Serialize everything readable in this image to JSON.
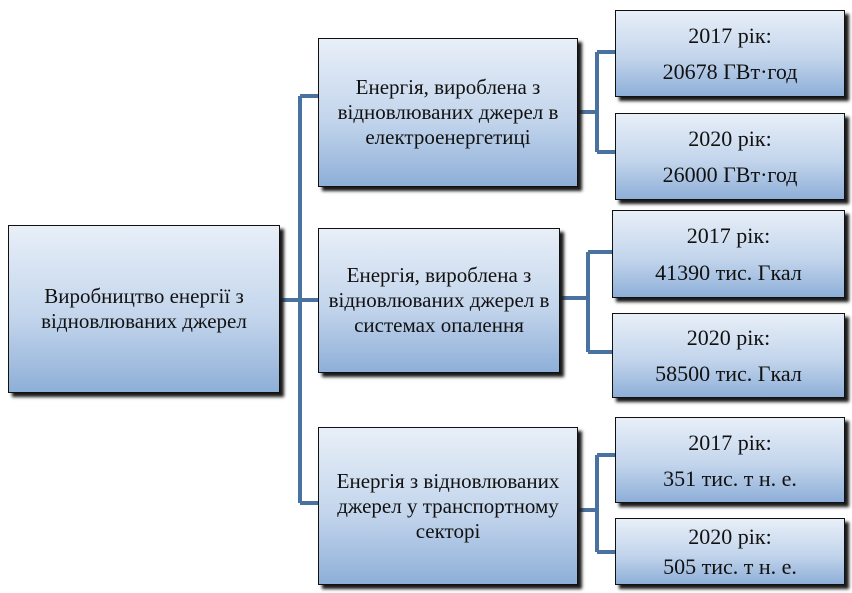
{
  "root": {
    "label": "Виробництво енергії з відновлюваних джерел"
  },
  "branches": [
    {
      "label": "Енергія, вироблена з відновлюваних джерел в електроенергетиці",
      "leaves": [
        {
          "year": "2017 рік:",
          "value": "20678 ГВт·год"
        },
        {
          "year": "2020 рік:",
          "value": "26000 ГВт·год"
        }
      ]
    },
    {
      "label": "Енергія, вироблена з відновлюваних джерел в системах опалення",
      "leaves": [
        {
          "year": "2017 рік:",
          "value": "41390 тис. Гкал"
        },
        {
          "year": "2020 рік:",
          "value": "58500 тис. Гкал"
        }
      ]
    },
    {
      "label": "Енергія з відновлюваних джерел у транспортному секторі",
      "leaves": [
        {
          "year": "2017 рік:",
          "value": "351 тис. т н. е."
        },
        {
          "year": "2020 рік:",
          "value": "505 тис. т н. е."
        }
      ]
    }
  ]
}
